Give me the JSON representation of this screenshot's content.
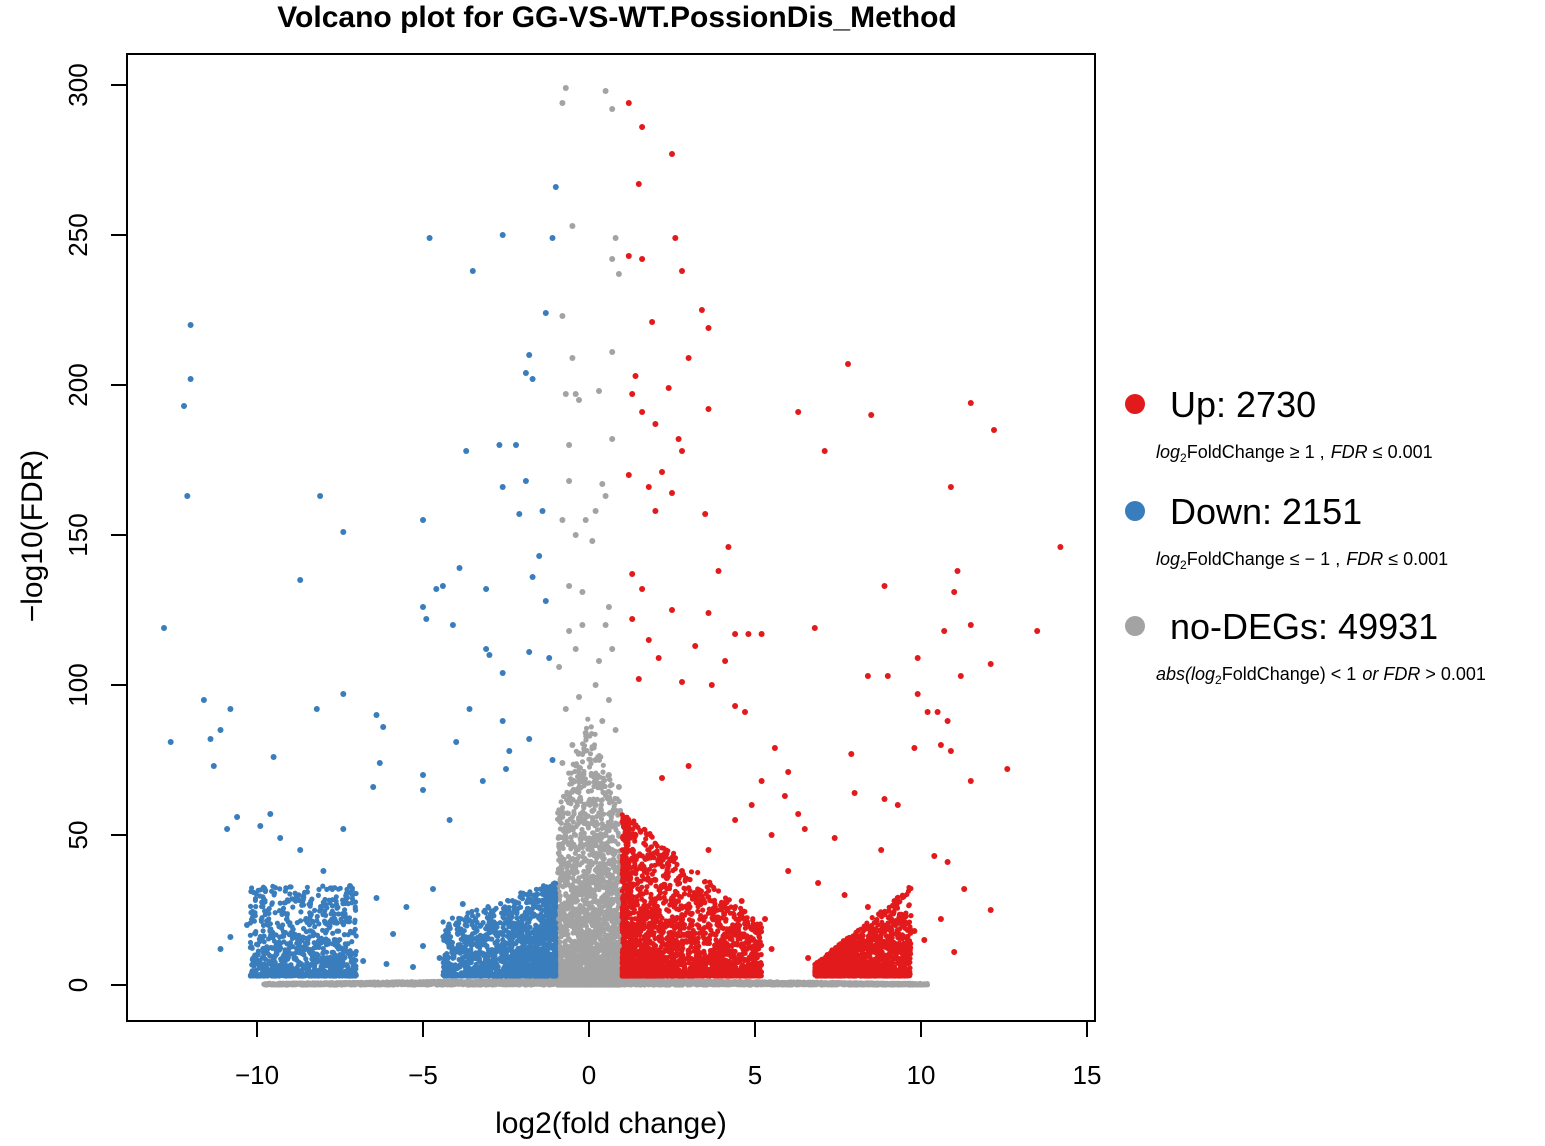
{
  "chart_data": {
    "type": "scatter",
    "title": "Volcano plot for GG-VS-WT.PossionDis_Method",
    "xlabel": "log2(fold change)",
    "ylabel": "−log10(FDR)",
    "xlim": [
      -14,
      15
    ],
    "ylim": [
      -12,
      312
    ],
    "x_ticks": [
      -10,
      -5,
      0,
      5,
      10,
      15
    ],
    "x_tick_labels": [
      "−10",
      "−5",
      "0",
      "5",
      "10",
      "15"
    ],
    "y_ticks": [
      0,
      50,
      100,
      150,
      200,
      250,
      300
    ],
    "y_tick_labels": [
      "0",
      "50",
      "100",
      "150",
      "200",
      "250",
      "300"
    ],
    "grid": false,
    "legend_position": "right",
    "thresholds": {
      "log2fc": 1,
      "fdr": 0.001
    },
    "series": [
      {
        "name": "Up",
        "label": "Up: 2730",
        "count": 2730,
        "color": "#e31a1c",
        "condition": {
          "p1": "log",
          "p2": "2",
          "p3": "FoldChange ≥ 1 ,",
          "p4": "FDR",
          "p5": " ≤ 0.001"
        },
        "points": [
          [
            1.2,
            294
          ],
          [
            1.6,
            286
          ],
          [
            2.5,
            277
          ],
          [
            1.5,
            267
          ],
          [
            2.6,
            249
          ],
          [
            1.2,
            243
          ],
          [
            1.6,
            242
          ],
          [
            2.8,
            238
          ],
          [
            3.4,
            225
          ],
          [
            1.9,
            221
          ],
          [
            3.6,
            219
          ],
          [
            3.0,
            209
          ],
          [
            7.8,
            207
          ],
          [
            1.4,
            203
          ],
          [
            2.4,
            199
          ],
          [
            1.3,
            197
          ],
          [
            1.6,
            191
          ],
          [
            3.6,
            192
          ],
          [
            6.3,
            191
          ],
          [
            8.5,
            190
          ],
          [
            11.5,
            194
          ],
          [
            12.2,
            185
          ],
          [
            2.0,
            187
          ],
          [
            2.7,
            182
          ],
          [
            2.8,
            178
          ],
          [
            7.1,
            178
          ],
          [
            1.2,
            170
          ],
          [
            2.2,
            171
          ],
          [
            1.8,
            166
          ],
          [
            10.9,
            166
          ],
          [
            2.5,
            164
          ],
          [
            3.5,
            157
          ],
          [
            2.0,
            158
          ],
          [
            14.2,
            146
          ],
          [
            4.2,
            146
          ],
          [
            11.1,
            138
          ],
          [
            1.3,
            137
          ],
          [
            3.9,
            138
          ],
          [
            1.6,
            132
          ],
          [
            8.9,
            133
          ],
          [
            11.0,
            131
          ],
          [
            2.5,
            125
          ],
          [
            3.6,
            124
          ],
          [
            1.3,
            122
          ],
          [
            4.4,
            117
          ],
          [
            5.2,
            117
          ],
          [
            6.8,
            119
          ],
          [
            10.7,
            118
          ],
          [
            11.5,
            120
          ],
          [
            13.5,
            118
          ],
          [
            1.8,
            115
          ],
          [
            4.8,
            117
          ],
          [
            3.2,
            113
          ],
          [
            2.1,
            109
          ],
          [
            4.1,
            108
          ],
          [
            8.4,
            103
          ],
          [
            9.0,
            103
          ],
          [
            9.9,
            109
          ],
          [
            12.1,
            107
          ],
          [
            11.2,
            103
          ],
          [
            1.5,
            102
          ],
          [
            2.8,
            101
          ],
          [
            3.7,
            100
          ],
          [
            4.4,
            93
          ],
          [
            4.7,
            91
          ],
          [
            9.9,
            97
          ],
          [
            10.2,
            91
          ],
          [
            10.5,
            91
          ],
          [
            10.8,
            88
          ],
          [
            5.6,
            79
          ],
          [
            9.8,
            79
          ],
          [
            7.9,
            77
          ],
          [
            10.6,
            80
          ],
          [
            10.9,
            78
          ],
          [
            12.6,
            72
          ],
          [
            11.5,
            68
          ],
          [
            5.2,
            68
          ],
          [
            6.0,
            71
          ],
          [
            2.2,
            69
          ],
          [
            3.0,
            73
          ],
          [
            8.0,
            64
          ],
          [
            8.9,
            62
          ],
          [
            9.3,
            60
          ],
          [
            4.9,
            60
          ],
          [
            5.9,
            63
          ],
          [
            4.4,
            55
          ],
          [
            5.5,
            50
          ],
          [
            6.3,
            57
          ],
          [
            6.5,
            52
          ],
          [
            7.4,
            49
          ],
          [
            8.8,
            45
          ],
          [
            10.4,
            43
          ],
          [
            10.8,
            41
          ],
          [
            11.3,
            32
          ],
          [
            12.1,
            25
          ],
          [
            6.0,
            38
          ],
          [
            6.9,
            34
          ],
          [
            7.7,
            30
          ],
          [
            8.4,
            26
          ],
          [
            9.1,
            22
          ],
          [
            9.8,
            18
          ],
          [
            3.6,
            45
          ],
          [
            2.8,
            38
          ],
          [
            2.0,
            35
          ],
          [
            4.6,
            28
          ],
          [
            5.3,
            22
          ],
          [
            1.4,
            50
          ],
          [
            1.7,
            42
          ],
          [
            2.3,
            28
          ],
          [
            3.1,
            20
          ],
          [
            4.0,
            15
          ],
          [
            5.5,
            12
          ],
          [
            6.6,
            9
          ],
          [
            7.5,
            7
          ],
          [
            8.2,
            8
          ],
          [
            9.0,
            6
          ],
          [
            9.5,
            12
          ],
          [
            10.1,
            15
          ],
          [
            10.6,
            22
          ],
          [
            11.0,
            11
          ]
        ]
      },
      {
        "name": "Down",
        "label": "Down: 2151",
        "count": 2151,
        "color": "#3a7dbd",
        "condition": {
          "p1": "log",
          "p2": "2",
          "p3": "FoldChange ≤ − 1 ,",
          "p4": "FDR",
          "p5": " ≤ 0.001"
        },
        "points": [
          [
            -1.0,
            266
          ],
          [
            -2.6,
            250
          ],
          [
            -1.1,
            249
          ],
          [
            -4.8,
            249
          ],
          [
            -3.5,
            238
          ],
          [
            -1.3,
            224
          ],
          [
            -12.0,
            220
          ],
          [
            -1.8,
            210
          ],
          [
            -12.0,
            202
          ],
          [
            -12.2,
            193
          ],
          [
            -1.9,
            204
          ],
          [
            -1.7,
            202
          ],
          [
            -2.2,
            180
          ],
          [
            -2.7,
            180
          ],
          [
            -3.7,
            178
          ],
          [
            -1.9,
            168
          ],
          [
            -2.6,
            166
          ],
          [
            -12.1,
            163
          ],
          [
            -8.1,
            163
          ],
          [
            -2.1,
            157
          ],
          [
            -1.4,
            158
          ],
          [
            -5.0,
            155
          ],
          [
            -7.4,
            151
          ],
          [
            -1.5,
            143
          ],
          [
            -3.9,
            139
          ],
          [
            -1.7,
            136
          ],
          [
            -8.7,
            135
          ],
          [
            -4.6,
            132
          ],
          [
            -4.4,
            133
          ],
          [
            -3.1,
            132
          ],
          [
            -1.3,
            128
          ],
          [
            -5.0,
            126
          ],
          [
            -4.9,
            122
          ],
          [
            -4.1,
            120
          ],
          [
            -12.8,
            119
          ],
          [
            -3.1,
            112
          ],
          [
            -3.0,
            110
          ],
          [
            -1.8,
            111
          ],
          [
            -1.2,
            109
          ],
          [
            -2.6,
            104
          ],
          [
            -11.6,
            95
          ],
          [
            -7.4,
            97
          ],
          [
            -8.2,
            92
          ],
          [
            -3.6,
            92
          ],
          [
            -2.6,
            88
          ],
          [
            -10.8,
            92
          ],
          [
            -11.1,
            85
          ],
          [
            -11.4,
            82
          ],
          [
            -12.6,
            81
          ],
          [
            -6.4,
            90
          ],
          [
            -6.2,
            86
          ],
          [
            -4.0,
            81
          ],
          [
            -2.4,
            78
          ],
          [
            -1.8,
            82
          ],
          [
            -1.1,
            75
          ],
          [
            -9.5,
            76
          ],
          [
            -11.3,
            73
          ],
          [
            -6.3,
            74
          ],
          [
            -3.2,
            68
          ],
          [
            -2.5,
            72
          ],
          [
            -6.5,
            66
          ],
          [
            -5.0,
            70
          ],
          [
            -5.0,
            65
          ],
          [
            -7.4,
            52
          ],
          [
            -4.2,
            55
          ],
          [
            -10.6,
            56
          ],
          [
            -9.6,
            57
          ],
          [
            -9.9,
            53
          ],
          [
            -10.9,
            52
          ],
          [
            -9.3,
            49
          ],
          [
            -8.7,
            45
          ],
          [
            -8.0,
            38
          ],
          [
            -7.2,
            33
          ],
          [
            -6.4,
            29
          ],
          [
            -5.5,
            26
          ],
          [
            -4.7,
            32
          ],
          [
            -3.8,
            27
          ],
          [
            -3.0,
            22
          ],
          [
            -2.2,
            25
          ],
          [
            -1.6,
            30
          ],
          [
            -10.3,
            20
          ],
          [
            -9.6,
            18
          ],
          [
            -8.9,
            16
          ],
          [
            -8.2,
            13
          ],
          [
            -7.5,
            10
          ],
          [
            -6.8,
            8
          ],
          [
            -6.1,
            7
          ],
          [
            -5.3,
            6
          ],
          [
            -4.5,
            9
          ],
          [
            -3.6,
            11
          ],
          [
            -2.8,
            14
          ],
          [
            -2.0,
            19
          ],
          [
            -1.3,
            21
          ],
          [
            -10.8,
            16
          ],
          [
            -11.1,
            12
          ],
          [
            -9.2,
            24
          ],
          [
            -8.4,
            27
          ],
          [
            -7.8,
            21
          ],
          [
            -5.9,
            17
          ],
          [
            -5.0,
            13
          ]
        ]
      },
      {
        "name": "no-DEGs",
        "label": "no-DEGs: 49931",
        "count": 49931,
        "color": "#a3a3a3",
        "condition": {
          "p1": "abs(log",
          "p2": "2",
          "p3": "FoldChange) < 1",
          "p4": "or FDR",
          "p5": " > 0.001"
        },
        "points": [
          [
            -0.7,
            299
          ],
          [
            -0.8,
            294
          ],
          [
            0.5,
            298
          ],
          [
            0.7,
            292
          ],
          [
            -0.5,
            253
          ],
          [
            0.8,
            249
          ],
          [
            0.7,
            242
          ],
          [
            0.9,
            237
          ],
          [
            -0.8,
            223
          ],
          [
            -0.5,
            209
          ],
          [
            0.7,
            211
          ],
          [
            -0.7,
            197
          ],
          [
            -0.4,
            197
          ],
          [
            0.3,
            198
          ],
          [
            -0.3,
            195
          ],
          [
            0.7,
            182
          ],
          [
            -0.6,
            180
          ],
          [
            0.4,
            167
          ],
          [
            0.5,
            163
          ],
          [
            0.2,
            158
          ],
          [
            -0.1,
            155
          ],
          [
            -0.6,
            168
          ],
          [
            -0.8,
            155
          ],
          [
            -0.4,
            150
          ],
          [
            0.1,
            148
          ],
          [
            -0.6,
            133
          ],
          [
            -0.2,
            131
          ],
          [
            0.6,
            126
          ],
          [
            -0.6,
            118
          ],
          [
            -0.2,
            120
          ],
          [
            0.5,
            120
          ],
          [
            0.7,
            112
          ],
          [
            -0.4,
            112
          ],
          [
            0.3,
            108
          ],
          [
            -0.9,
            106
          ],
          [
            0.2,
            100
          ],
          [
            -0.3,
            96
          ],
          [
            0.6,
            95
          ],
          [
            -0.7,
            92
          ],
          [
            0.4,
            88
          ],
          [
            -0.1,
            84
          ],
          [
            0.8,
            85
          ],
          [
            -0.5,
            80
          ],
          [
            0.2,
            75
          ],
          [
            -0.8,
            74
          ],
          [
            0.6,
            70
          ],
          [
            -0.2,
            68
          ],
          [
            0.9,
            66
          ],
          [
            -0.6,
            61
          ],
          [
            0.1,
            58
          ],
          [
            -0.3,
            55
          ],
          [
            0.5,
            50
          ],
          [
            -0.8,
            47
          ],
          [
            0.7,
            45
          ],
          [
            -0.4,
            41
          ],
          [
            0.3,
            38
          ],
          [
            -0.1,
            35
          ],
          [
            0.8,
            32
          ],
          [
            -0.6,
            28
          ],
          [
            0.2,
            25
          ],
          [
            -0.9,
            22
          ],
          [
            0.6,
            19
          ],
          [
            -0.3,
            16
          ],
          [
            0.9,
            13
          ],
          [
            -0.7,
            10
          ],
          [
            0.4,
            7
          ],
          [
            -0.2,
            5
          ],
          [
            0.1,
            3
          ]
        ]
      }
    ]
  }
}
